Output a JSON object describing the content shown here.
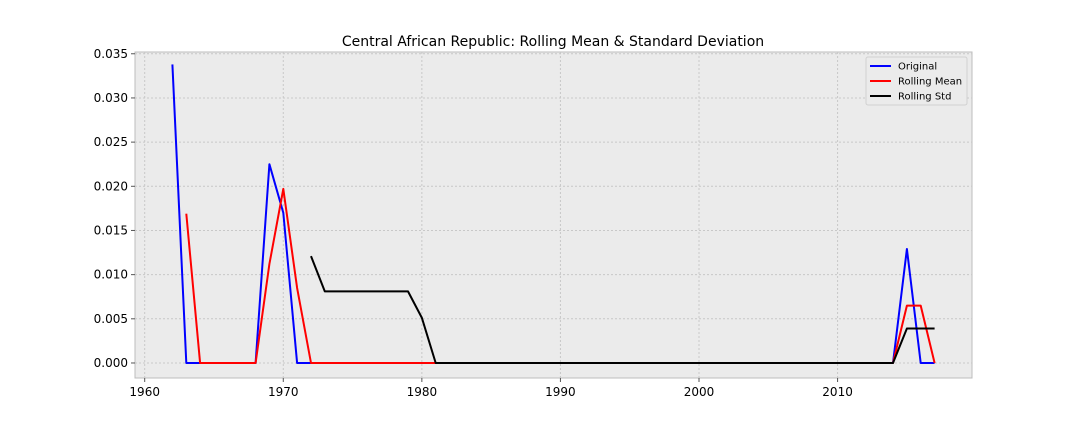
{
  "chart_data": {
    "type": "line",
    "title": "Central African Republic: Rolling Mean & Standard Deviation",
    "xlabel": "",
    "ylabel": "",
    "xlim": [
      1959.3,
      2019.7
    ],
    "ylim": [
      -0.0017,
      0.0352
    ],
    "x_ticks": [
      1960,
      1970,
      1980,
      1990,
      2000,
      2010
    ],
    "x_tick_labels": [
      "1960",
      "1970",
      "1980",
      "1990",
      "2000",
      "2010"
    ],
    "y_ticks": [
      0.0,
      0.005,
      0.01,
      0.015,
      0.02,
      0.025,
      0.03,
      0.035
    ],
    "y_tick_labels": [
      "0.000",
      "0.005",
      "0.010",
      "0.015",
      "0.020",
      "0.025",
      "0.030",
      "0.035"
    ],
    "grid": true,
    "legend_position": "upper right",
    "series": [
      {
        "name": "Original",
        "color": "#0000ff",
        "x": [
          1962,
          1963,
          1964,
          1965,
          1966,
          1967,
          1968,
          1969,
          1970,
          1971,
          1972,
          1973,
          1974,
          1975,
          1976,
          1977,
          1978,
          1979,
          1980,
          1981,
          1982,
          1983,
          1984,
          1985,
          1986,
          1987,
          1988,
          1989,
          1990,
          1991,
          1992,
          1993,
          1994,
          1995,
          1996,
          1997,
          1998,
          1999,
          2000,
          2001,
          2002,
          2003,
          2004,
          2005,
          2006,
          2007,
          2008,
          2009,
          2010,
          2011,
          2012,
          2013,
          2014,
          2015,
          2016,
          2017
        ],
        "y": [
          0.0338,
          0,
          0,
          0,
          0,
          0,
          0,
          0.0225,
          0.017,
          0,
          0,
          0,
          0,
          0,
          0,
          0,
          0,
          0,
          0,
          0,
          0,
          0,
          0,
          0,
          0,
          0,
          0,
          0,
          0,
          0,
          0,
          0,
          0,
          0,
          0,
          0,
          0,
          0,
          0,
          0,
          0,
          0,
          0,
          0,
          0,
          0,
          0,
          0,
          0,
          0,
          0,
          0,
          0,
          0.0129,
          0,
          0
        ]
      },
      {
        "name": "Rolling Mean",
        "color": "#ff0000",
        "x": [
          1963,
          1964,
          1965,
          1966,
          1967,
          1968,
          1969,
          1970,
          1971,
          1972,
          1973,
          1974,
          1975,
          1976,
          1977,
          1978,
          1979,
          1980,
          1981,
          1982,
          1983,
          1984,
          1985,
          1986,
          1987,
          1988,
          1989,
          1990,
          1991,
          1992,
          1993,
          1994,
          1995,
          1996,
          1997,
          1998,
          1999,
          2000,
          2001,
          2002,
          2003,
          2004,
          2005,
          2006,
          2007,
          2008,
          2009,
          2010,
          2011,
          2012,
          2013,
          2014,
          2015,
          2016,
          2017
        ],
        "y": [
          0.0169,
          0,
          0,
          0,
          0,
          0,
          0.0112,
          0.0197,
          0.0085,
          0,
          0,
          0,
          0,
          0,
          0,
          0,
          0,
          0,
          0,
          0,
          0,
          0,
          0,
          0,
          0,
          0,
          0,
          0,
          0,
          0,
          0,
          0,
          0,
          0,
          0,
          0,
          0,
          0,
          0,
          0,
          0,
          0,
          0,
          0,
          0,
          0,
          0,
          0,
          0,
          0,
          0,
          0,
          0.0065,
          0.0065,
          0
        ]
      },
      {
        "name": "Rolling Std",
        "color": "#000000",
        "x": [
          1972,
          1973,
          1974,
          1975,
          1976,
          1977,
          1978,
          1979,
          1980,
          1981,
          1982,
          1983,
          1984,
          1985,
          1986,
          1987,
          1988,
          1989,
          1990,
          1991,
          1992,
          1993,
          1994,
          1995,
          1996,
          1997,
          1998,
          1999,
          2000,
          2001,
          2002,
          2003,
          2004,
          2005,
          2006,
          2007,
          2008,
          2009,
          2010,
          2011,
          2012,
          2013,
          2014,
          2015,
          2016,
          2017
        ],
        "y": [
          0.0121,
          0.0081,
          0.0081,
          0.0081,
          0.0081,
          0.0081,
          0.0081,
          0.0081,
          0.0051,
          0,
          0,
          0,
          0,
          0,
          0,
          0,
          0,
          0,
          0,
          0,
          0,
          0,
          0,
          0,
          0,
          0,
          0,
          0,
          0,
          0,
          0,
          0,
          0,
          0,
          0,
          0,
          0,
          0,
          0,
          0,
          0,
          0,
          0,
          0.0039,
          0.0039,
          0.0039
        ]
      }
    ]
  }
}
